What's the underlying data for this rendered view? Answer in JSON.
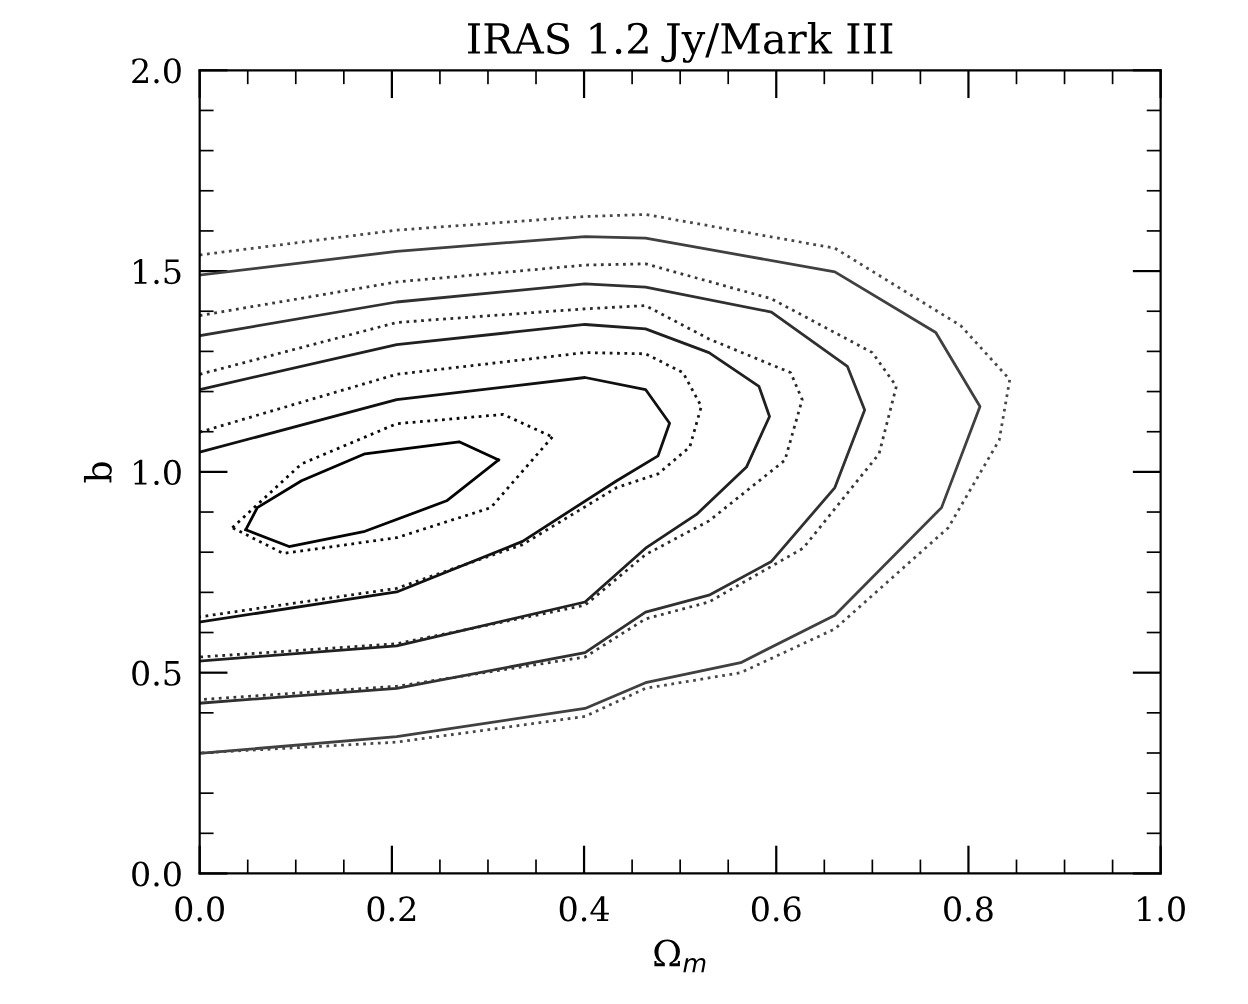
{
  "chart_data": {
    "type": "line",
    "title": "IRAS 1.2 Jy/Mark III",
    "xlabel": "Ω$_{m}$",
    "ylabel": "b",
    "xlim": [
      0,
      1
    ],
    "ylim": [
      0,
      2
    ],
    "xticks": [
      {
        "value": 0,
        "label": "0.0"
      },
      {
        "value": 0.2,
        "label": "0.2"
      },
      {
        "value": 0.4,
        "label": "0.4"
      },
      {
        "value": 0.6,
        "label": "0.6"
      },
      {
        "value": 0.8,
        "label": "0.8"
      },
      {
        "value": 1,
        "label": "1.0"
      }
    ],
    "yticks": [
      {
        "value": 0,
        "label": "0.0"
      },
      {
        "value": 0.5,
        "label": "0.5"
      },
      {
        "value": 1,
        "label": "1.0"
      },
      {
        "value": 1.5,
        "label": "1.5"
      },
      {
        "value": 2,
        "label": "2.0"
      }
    ],
    "grid": false,
    "marker": "none",
    "series": [
      {
        "color": "#000000",
        "line_style": "solid",
        "x": [
          0.048,
          0.06,
          0.106,
          0.172,
          0.27,
          0.311
        ],
        "values": [
          0.856,
          0.911,
          0.978,
          1.045,
          1.075,
          1.03
        ]
      },
      {
        "color": "#040404",
        "line_style": "solid",
        "x": [
          0.311,
          0.257,
          0.172,
          0.093,
          0.048
        ],
        "values": [
          1.03,
          0.928,
          0.852,
          0.814,
          0.856
        ]
      },
      {
        "color": "#080808",
        "line_style": "dotted",
        "x": [
          0.034,
          0.106,
          0.205,
          0.316,
          0.367
        ],
        "values": [
          0.861,
          1.02,
          1.12,
          1.143,
          1.087
        ]
      },
      {
        "color": "#0c0c0c",
        "line_style": "dotted",
        "x": [
          0.367,
          0.303,
          0.205,
          0.087,
          0.034
        ],
        "values": [
          1.087,
          0.911,
          0.836,
          0.797,
          0.861
        ]
      },
      {
        "color": "#101010",
        "line_style": "solid",
        "x": [
          0,
          0.205,
          0.401,
          0.464,
          0.489,
          0.477,
          0.434,
          0.336,
          0.205,
          0
        ],
        "values": [
          1.049,
          1.18,
          1.235,
          1.205,
          1.121,
          1.04,
          0.978,
          0.827,
          0.701,
          0.626
        ]
      },
      {
        "color": "#181818",
        "line_style": "dotted",
        "x": [
          0,
          0.205,
          0.401,
          0.464,
          0.503,
          0.522,
          0.51,
          0.477,
          0.434,
          0.336,
          0.205,
          0
        ],
        "values": [
          1.099,
          1.243,
          1.297,
          1.294,
          1.247,
          1.163,
          1.062,
          0.995,
          0.961,
          0.819,
          0.71,
          0.639
        ]
      },
      {
        "color": "#202020",
        "line_style": "solid",
        "x": [
          0,
          0.205,
          0.401,
          0.464,
          0.53,
          0.582,
          0.593,
          0.569,
          0.517,
          0.464,
          0.401,
          0.205,
          0
        ],
        "values": [
          1.205,
          1.317,
          1.367,
          1.356,
          1.297,
          1.213,
          1.138,
          1.012,
          0.894,
          0.81,
          0.676,
          0.567,
          0.529
        ]
      },
      {
        "color": "#282828",
        "line_style": "dotted",
        "x": [
          0,
          0.205,
          0.401,
          0.464,
          0.53,
          0.615,
          0.627,
          0.609,
          0.53,
          0.464,
          0.401,
          0.205,
          0
        ],
        "values": [
          1.243,
          1.372,
          1.406,
          1.414,
          1.331,
          1.247,
          1.18,
          1.029,
          0.878,
          0.794,
          0.668,
          0.572,
          0.539
        ]
      },
      {
        "color": "#303030",
        "line_style": "solid",
        "x": [
          0,
          0.205,
          0.401,
          0.464,
          0.595,
          0.674,
          0.692,
          0.661,
          0.595,
          0.53,
          0.464,
          0.401,
          0.205,
          0
        ],
        "values": [
          1.339,
          1.423,
          1.468,
          1.46,
          1.398,
          1.263,
          1.154,
          0.961,
          0.777,
          0.693,
          0.651,
          0.55,
          0.461,
          0.424
        ]
      },
      {
        "color": "#383838",
        "line_style": "dotted",
        "x": [
          0,
          0.205,
          0.401,
          0.464,
          0.595,
          0.7,
          0.725,
          0.707,
          0.628,
          0.53,
          0.464,
          0.401,
          0.205,
          0
        ],
        "values": [
          1.389,
          1.473,
          1.515,
          1.518,
          1.431,
          1.297,
          1.213,
          1.045,
          0.81,
          0.676,
          0.634,
          0.539,
          0.466,
          0.433
        ]
      },
      {
        "color": "#404040",
        "line_style": "solid",
        "x": [
          0,
          0.205,
          0.401,
          0.464,
          0.661,
          0.766,
          0.812,
          0.772,
          0.661,
          0.563,
          0.464,
          0.401,
          0.205,
          0
        ],
        "values": [
          1.49,
          1.549,
          1.586,
          1.582,
          1.498,
          1.347,
          1.163,
          0.911,
          0.643,
          0.525,
          0.475,
          0.411,
          0.341,
          0.299
        ]
      },
      {
        "color": "#484848",
        "line_style": "dotted",
        "x": [
          0,
          0.205,
          0.401,
          0.464,
          0.661,
          0.792,
          0.843,
          0.832,
          0.779,
          0.661,
          0.563,
          0.464,
          0.401,
          0.205,
          0
        ],
        "values": [
          1.54,
          1.602,
          1.636,
          1.641,
          1.557,
          1.364,
          1.23,
          1.079,
          0.861,
          0.609,
          0.5,
          0.461,
          0.391,
          0.327,
          0.3
        ]
      }
    ]
  }
}
